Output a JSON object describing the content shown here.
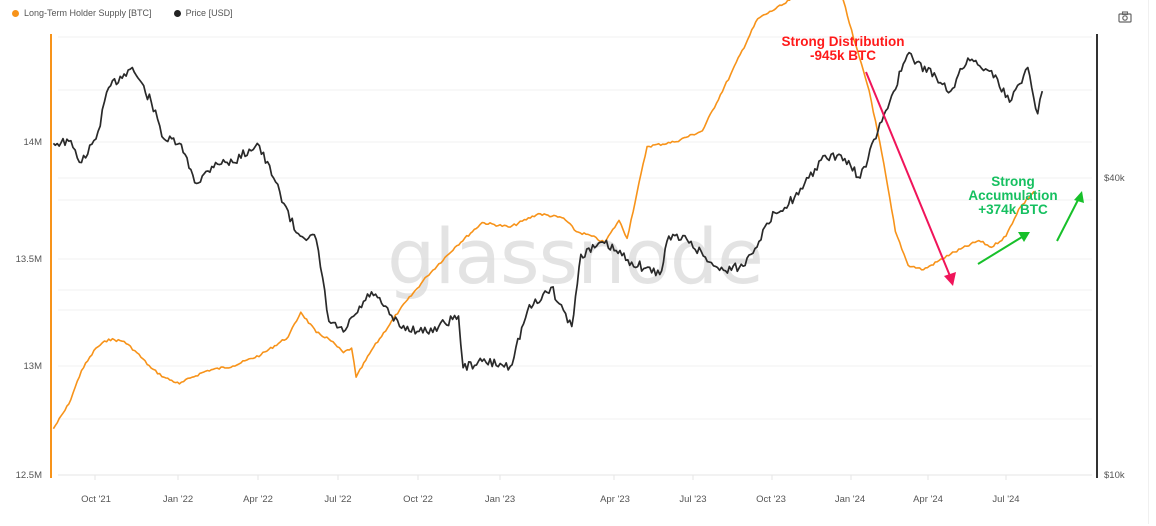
{
  "legend": [
    {
      "label": "Long-Term Holder Supply [BTC]",
      "color": "#f7931a"
    },
    {
      "label": "Price [USD]",
      "color": "#222222"
    }
  ],
  "toolbar": {
    "camera_icon": "camera-icon"
  },
  "watermark": "glassnode",
  "annotations": {
    "distribution": {
      "line1": "Strong Distribution",
      "line2": "-945k BTC",
      "color": "#ff1a1a",
      "arrow_color": "#f0145a"
    },
    "accumulation": {
      "line1": "Strong",
      "line2": "Accumulation",
      "line3": "+374k BTC",
      "color": "#16c060",
      "arrow_color": "#17c02a"
    }
  },
  "chart_data": {
    "type": "line",
    "title": "",
    "xlabel": "",
    "ylabel_left": "Long-Term Holder Supply [BTC]",
    "ylabel_right": "Price [USD]",
    "x_ticks": [
      "Oct '21",
      "Jan '22",
      "Apr '22",
      "Jul '22",
      "Oct '22",
      "Jan '23",
      "Apr '23",
      "Jul '23",
      "Oct '23",
      "Jan '24",
      "Apr '24",
      "Jul '24"
    ],
    "y_left_ticks": [
      "14M",
      "13.5M",
      "13M",
      "12.5M"
    ],
    "y_left_range": [
      12500000,
      14500000
    ],
    "y_right_ticks": [
      "$40k",
      "$10k"
    ],
    "y_right_scale": "log",
    "grid": true,
    "legend_position": "top-left",
    "series": [
      {
        "name": "Long-Term Holder Supply [BTC]",
        "axis": "left",
        "color": "#f7931a",
        "dates": [
          "2021-08-15",
          "2021-09-01",
          "2021-09-15",
          "2021-10-01",
          "2021-10-15",
          "2021-11-01",
          "2021-11-15",
          "2021-12-01",
          "2021-12-15",
          "2022-01-01",
          "2022-01-15",
          "2022-02-01",
          "2022-03-01",
          "2022-04-01",
          "2022-05-01",
          "2022-05-15",
          "2022-06-01",
          "2022-06-15",
          "2022-07-01",
          "2022-07-10",
          "2022-07-15",
          "2022-08-01",
          "2022-09-01",
          "2022-10-01",
          "2022-11-01",
          "2022-12-01",
          "2023-01-01",
          "2023-02-01",
          "2023-03-01",
          "2023-03-15",
          "2023-04-01",
          "2023-04-15",
          "2023-05-01",
          "2023-05-10",
          "2023-06-01",
          "2023-07-01",
          "2023-08-01",
          "2023-09-01",
          "2023-10-01",
          "2023-11-01",
          "2023-12-01",
          "2023-12-15",
          "2024-01-01",
          "2024-01-15",
          "2024-02-01",
          "2024-02-15",
          "2024-03-01",
          "2024-03-15",
          "2024-04-01",
          "2024-05-01",
          "2024-06-01",
          "2024-06-15",
          "2024-07-01",
          "2024-07-15",
          "2024-08-01"
        ],
        "values": [
          12720000,
          12830000,
          12980000,
          13080000,
          13120000,
          13110000,
          13060000,
          12990000,
          12950000,
          12920000,
          12950000,
          12980000,
          13000000,
          13050000,
          13130000,
          13240000,
          13150000,
          13120000,
          13060000,
          13080000,
          12950000,
          13070000,
          13250000,
          13400000,
          13530000,
          13640000,
          13620000,
          13680000,
          13660000,
          13600000,
          13580000,
          13550000,
          13650000,
          13570000,
          13980000,
          14000000,
          14050000,
          14300000,
          14550000,
          14620000,
          14720000,
          14680000,
          14670000,
          14460000,
          14230000,
          13950000,
          13600000,
          13450000,
          13430000,
          13500000,
          13560000,
          13530000,
          13580000,
          13700000,
          13780000
        ]
      },
      {
        "name": "Price [USD]",
        "axis": "right",
        "color": "#222222",
        "dates": [
          "2021-08-15",
          "2021-09-01",
          "2021-09-15",
          "2021-10-01",
          "2021-10-15",
          "2021-11-01",
          "2021-11-10",
          "2021-12-01",
          "2021-12-15",
          "2022-01-01",
          "2022-01-20",
          "2022-02-10",
          "2022-03-01",
          "2022-03-28",
          "2022-04-15",
          "2022-05-10",
          "2022-06-01",
          "2022-06-15",
          "2022-07-01",
          "2022-08-01",
          "2022-09-01",
          "2022-10-01",
          "2022-11-05",
          "2022-11-10",
          "2022-12-01",
          "2023-01-01",
          "2023-01-20",
          "2023-02-15",
          "2023-03-10",
          "2023-03-20",
          "2023-04-15",
          "2023-05-15",
          "2023-06-15",
          "2023-06-25",
          "2023-07-15",
          "2023-08-20",
          "2023-09-15",
          "2023-10-20",
          "2023-11-15",
          "2023-12-10",
          "2024-01-01",
          "2024-01-22",
          "2024-02-15",
          "2024-03-14",
          "2024-04-15",
          "2024-05-01",
          "2024-05-20",
          "2024-06-15",
          "2024-07-05",
          "2024-07-25",
          "2024-08-05",
          "2024-08-10"
        ],
        "values": [
          47000,
          47500,
          43000,
          48000,
          61000,
          65000,
          67000,
          57000,
          48000,
          47000,
          39000,
          43000,
          43000,
          47000,
          40000,
          31000,
          30000,
          20500,
          19500,
          23500,
          20000,
          19500,
          21000,
          16500,
          17000,
          16600,
          21500,
          24000,
          20000,
          28000,
          29500,
          27000,
          25500,
          30500,
          30000,
          26000,
          26500,
          34000,
          37000,
          43500,
          44500,
          40000,
          52000,
          71000,
          64000,
          60000,
          70000,
          66000,
          57000,
          67000,
          54000,
          60000
        ]
      }
    ]
  }
}
